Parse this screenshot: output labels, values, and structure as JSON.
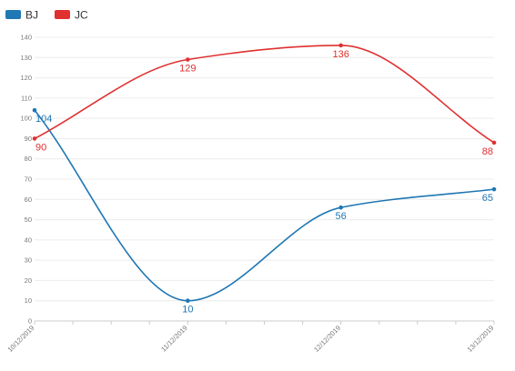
{
  "chart_data": {
    "type": "line",
    "title": "",
    "xlabel": "",
    "ylabel": "",
    "categories": [
      "10/12/2019",
      "11/12/2019",
      "12/12/2019",
      "13/12/2019"
    ],
    "ylim": [
      0,
      140
    ],
    "yticks": [
      0,
      10,
      20,
      30,
      40,
      50,
      60,
      70,
      80,
      90,
      100,
      110,
      120,
      130,
      140
    ],
    "grid": true,
    "legend_position": "top-left",
    "series": [
      {
        "name": "BJ",
        "color": "#1f77b4",
        "values": [
          104,
          10,
          56,
          65
        ]
      },
      {
        "name": "JC",
        "color": "#e03030",
        "values": [
          90,
          129,
          136,
          88
        ]
      }
    ]
  }
}
